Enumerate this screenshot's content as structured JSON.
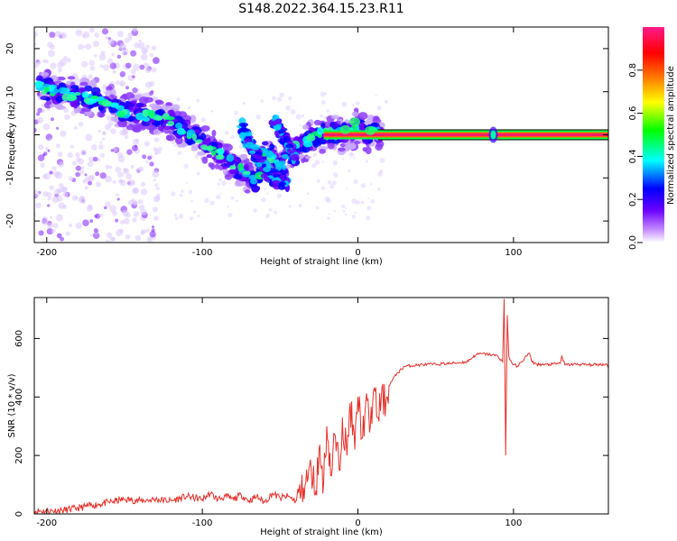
{
  "title": "S148.2022.364.15.23.R11",
  "chart_data": [
    {
      "type": "heatmap",
      "xlabel": "Height of straight line (km)",
      "ylabel": "Frequency (Hz)",
      "xlim": [
        -208,
        161
      ],
      "ylim": [
        -25,
        25
      ],
      "xticks": [
        -200,
        -100,
        0,
        100
      ],
      "yticks": [
        -20,
        -10,
        0,
        10,
        20
      ],
      "colorbar": {
        "label": "Normalized spectral amplitude",
        "ticks": [
          "0.0",
          "0.2",
          "0.4",
          "0.6",
          "0.8"
        ],
        "range": [
          0,
          1
        ],
        "colors": [
          "#ffffff",
          "#9b30ff",
          "#0000ff",
          "#00ffff",
          "#00ff00",
          "#ffff00",
          "#ff8000",
          "#ff0000",
          "#ff1493"
        ]
      },
      "ridge": {
        "x": [
          -205,
          -195,
          -180,
          -170,
          -160,
          -150,
          -140,
          -130,
          -120,
          -110,
          -100,
          -90,
          -80,
          -70,
          -65,
          -60,
          -55,
          -50,
          -45,
          -40,
          -35,
          -30,
          -25,
          -20,
          -15,
          -10,
          -5,
          0,
          5,
          10,
          15,
          20,
          40,
          60,
          80,
          85,
          88,
          90,
          100,
          120,
          140,
          160
        ],
        "freq": [
          11,
          10,
          9,
          8.5,
          7,
          5,
          5,
          4,
          3,
          1,
          -2,
          -4,
          -7,
          -10,
          -11,
          -4,
          -5,
          -8,
          -5,
          -3,
          -2,
          -1,
          0,
          0,
          0.5,
          0,
          0.5,
          2,
          0,
          0.5,
          0,
          0,
          0,
          0,
          0,
          0,
          0,
          0,
          0,
          0,
          0,
          0
        ]
      },
      "branch": {
        "x": [
          -75,
          -70,
          -65,
          -60,
          -55,
          -50,
          -45
        ],
        "freq": [
          2,
          -2,
          -5,
          -8,
          -10,
          -11,
          -12
        ]
      },
      "branch2": {
        "x": [
          -55,
          -50,
          -45,
          -40
        ],
        "freq": [
          4,
          1,
          -2,
          -6
        ]
      }
    },
    {
      "type": "line",
      "xlabel": "Height of straight line (km)",
      "ylabel": "SNR (10 * v/v)",
      "xlim": [
        -208,
        161
      ],
      "ylim": [
        0,
        740
      ],
      "xticks": [
        -200,
        -100,
        0,
        100
      ],
      "yticks": [
        0,
        200,
        400,
        600
      ],
      "color": "#e8302a",
      "x": [
        -208,
        -200,
        -190,
        -180,
        -170,
        -160,
        -150,
        -140,
        -130,
        -120,
        -110,
        -100,
        -95,
        -90,
        -85,
        -80,
        -75,
        -70,
        -65,
        -60,
        -55,
        -50,
        -45,
        -40,
        -35,
        -30,
        -27,
        -25,
        -22,
        -20,
        -17,
        -15,
        -12,
        -10,
        -7,
        -5,
        -2,
        0,
        3,
        5,
        8,
        10,
        13,
        15,
        18,
        20,
        25,
        30,
        40,
        50,
        60,
        70,
        76,
        80,
        85,
        90,
        93,
        94,
        95,
        96,
        97,
        98,
        100,
        103,
        105,
        110,
        112,
        115,
        120,
        125,
        130,
        131,
        133,
        140,
        150,
        160,
        161
      ],
      "y": [
        10,
        10,
        12,
        20,
        30,
        40,
        50,
        45,
        50,
        45,
        60,
        50,
        70,
        50,
        60,
        50,
        65,
        45,
        60,
        40,
        70,
        55,
        60,
        45,
        90,
        150,
        80,
        220,
        110,
        300,
        130,
        270,
        150,
        330,
        200,
        380,
        220,
        400,
        260,
        380,
        300,
        420,
        330,
        400,
        380,
        440,
        480,
        505,
        510,
        512,
        515,
        520,
        545,
        548,
        545,
        540,
        520,
        735,
        200,
        680,
        540,
        525,
        510,
        505,
        520,
        550,
        520,
        512,
        510,
        512,
        515,
        540,
        510,
        512,
        510,
        512,
        500
      ]
    }
  ]
}
